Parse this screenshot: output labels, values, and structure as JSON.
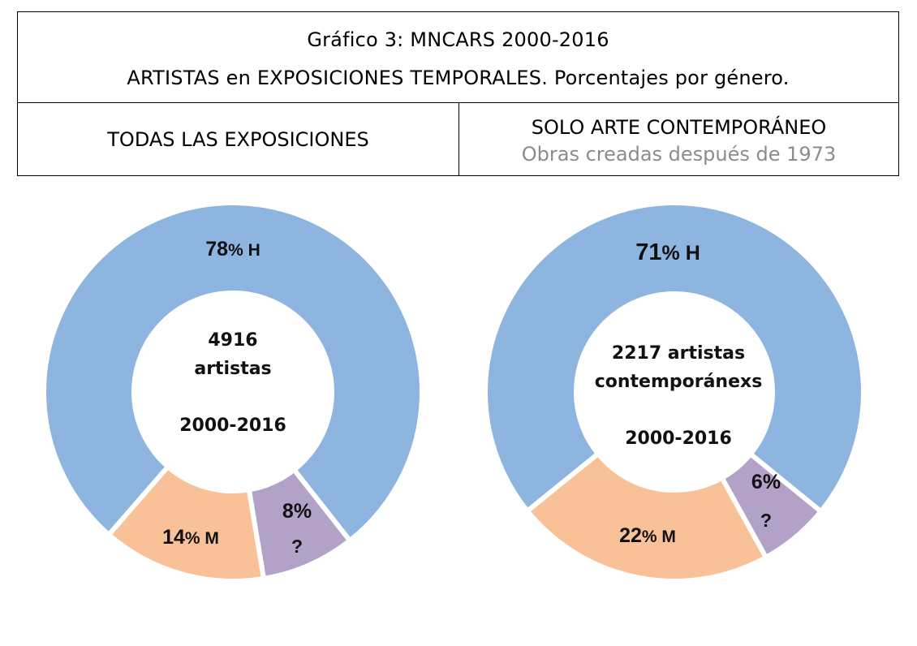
{
  "header": {
    "title_line1": "Gráfico 3: MNCARS 2000-2016",
    "title_line2": "ARTISTAS en EXPOSICIONES TEMPORALES. Porcentajes por género.",
    "left_heading": "TODAS LAS EXPOSICIONES",
    "right_heading": "SOLO ARTE CONTEMPORÁNEO",
    "right_subheading": "Obras creadas después de 1973"
  },
  "colors": {
    "H": "#8EB4E0",
    "M": "#F8C197",
    "unknown": "#B3A2C7"
  },
  "chart_data": [
    {
      "type": "pie",
      "subtype": "donut",
      "title": "TODAS LAS EXPOSICIONES",
      "center_text": [
        "4916",
        "artistas",
        "",
        "2000-2016"
      ],
      "total": 4916,
      "period": "2000-2016",
      "categories": [
        "H",
        "M",
        "?"
      ],
      "values": [
        78,
        14,
        8
      ],
      "unit": "%",
      "labels": [
        {
          "pct": "78",
          "suffix": "% H"
        },
        {
          "pct": "14",
          "suffix": "% M"
        },
        {
          "pct": "8%",
          "suffix": "?"
        }
      ]
    },
    {
      "type": "pie",
      "subtype": "donut",
      "title": "SOLO ARTE CONTEMPORÁNEO — Obras creadas después de 1973",
      "center_text": [
        "2217 artistas",
        "contemporánexs",
        "",
        "2000-2016"
      ],
      "total": 2217,
      "period": "2000-2016",
      "categories": [
        "H",
        "M",
        "?"
      ],
      "values": [
        71,
        22,
        6
      ],
      "unit": "%",
      "labels": [
        {
          "pct": "71",
          "suffix": "% H"
        },
        {
          "pct": "22",
          "suffix": "% M"
        },
        {
          "pct": "6%",
          "suffix": "?"
        }
      ]
    }
  ]
}
